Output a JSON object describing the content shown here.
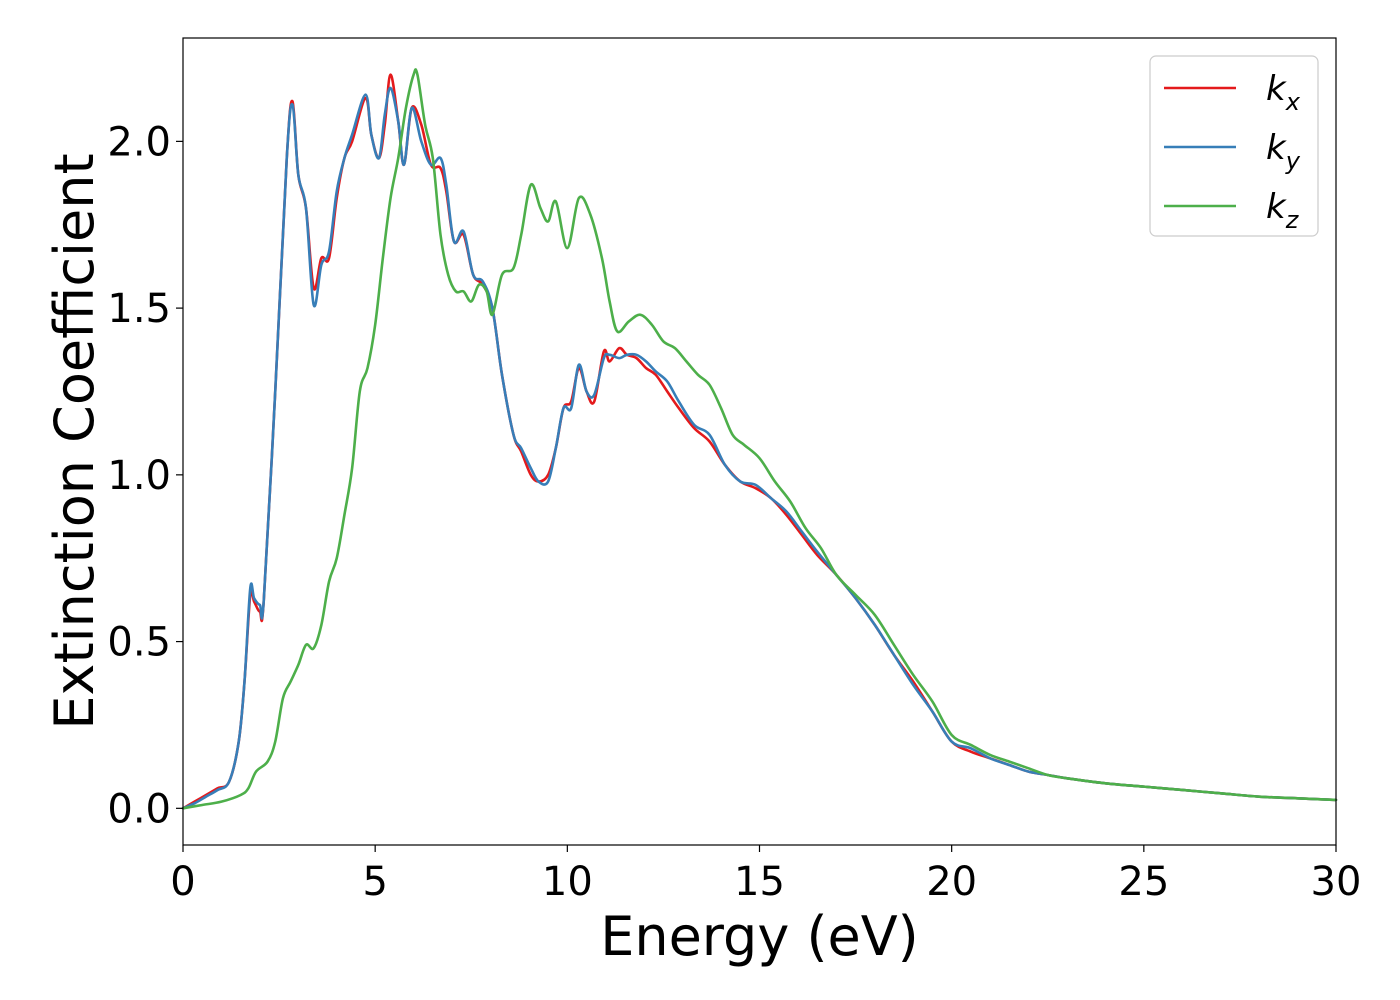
{
  "chart_data": {
    "type": "line",
    "xlabel": "Energy (eV)",
    "ylabel": "Extinction Coefficient",
    "xlim": [
      0,
      30
    ],
    "ylim": [
      -0.11,
      2.31
    ],
    "xticks": [
      0,
      5,
      10,
      15,
      20,
      25,
      30
    ],
    "xtick_labels": [
      "0",
      "5",
      "10",
      "15",
      "20",
      "25",
      "30"
    ],
    "yticks": [
      0.0,
      0.5,
      1.0,
      1.5,
      2.0
    ],
    "ytick_labels": [
      "0.0",
      "0.5",
      "1.0",
      "1.5",
      "2.0"
    ],
    "grid": false,
    "legend_position": "top-right",
    "series": [
      {
        "name": "k",
        "subscript": "x",
        "color": "#e41a1c",
        "x": [
          0,
          0.3,
          0.6,
          0.9,
          1.2,
          1.45,
          1.6,
          1.75,
          1.85,
          2.0,
          2.1,
          2.4,
          2.7,
          2.85,
          3.0,
          3.2,
          3.4,
          3.6,
          3.8,
          4.0,
          4.2,
          4.4,
          4.75,
          4.9,
          5.1,
          5.25,
          5.4,
          5.6,
          5.75,
          5.95,
          6.2,
          6.45,
          6.7,
          6.85,
          7.05,
          7.3,
          7.55,
          7.8,
          8.05,
          8.3,
          8.6,
          8.8,
          9.05,
          9.25,
          9.5,
          9.7,
          9.9,
          10.1,
          10.3,
          10.5,
          10.7,
          10.95,
          11.1,
          11.35,
          11.55,
          11.8,
          12.05,
          12.3,
          12.6,
          12.9,
          13.3,
          13.7,
          14.1,
          14.5,
          14.9,
          15.3,
          15.7,
          16.1,
          16.5,
          17.0,
          17.5,
          18.0,
          18.5,
          19.0,
          19.5,
          20.0,
          20.5,
          21.0,
          21.5,
          22.0,
          22.5,
          23.0,
          24.0,
          25.0,
          26.0,
          27.0,
          28.0,
          29.0,
          30.0
        ],
        "values": [
          0.0,
          0.02,
          0.04,
          0.06,
          0.08,
          0.2,
          0.38,
          0.64,
          0.62,
          0.59,
          0.62,
          1.25,
          1.95,
          2.12,
          1.9,
          1.8,
          1.56,
          1.65,
          1.65,
          1.83,
          1.95,
          2.0,
          2.13,
          2.02,
          1.95,
          2.05,
          2.2,
          2.06,
          1.93,
          2.1,
          2.05,
          1.93,
          1.92,
          1.85,
          1.7,
          1.72,
          1.6,
          1.57,
          1.5,
          1.3,
          1.12,
          1.07,
          1.0,
          0.98,
          1.0,
          1.08,
          1.2,
          1.22,
          1.32,
          1.25,
          1.22,
          1.37,
          1.34,
          1.38,
          1.36,
          1.35,
          1.32,
          1.3,
          1.25,
          1.2,
          1.14,
          1.1,
          1.03,
          0.98,
          0.96,
          0.93,
          0.88,
          0.82,
          0.76,
          0.7,
          0.63,
          0.55,
          0.46,
          0.38,
          0.29,
          0.2,
          0.17,
          0.15,
          0.13,
          0.11,
          0.1,
          0.09,
          0.075,
          0.065,
          0.055,
          0.045,
          0.035,
          0.03,
          0.025
        ]
      },
      {
        "name": "k",
        "subscript": "y",
        "color": "#377eb8",
        "x": [
          0,
          0.3,
          0.6,
          0.9,
          1.2,
          1.45,
          1.6,
          1.75,
          1.85,
          2.0,
          2.1,
          2.4,
          2.7,
          2.85,
          3.0,
          3.2,
          3.4,
          3.6,
          3.8,
          4.0,
          4.2,
          4.4,
          4.75,
          4.9,
          5.1,
          5.25,
          5.4,
          5.6,
          5.75,
          5.95,
          6.2,
          6.45,
          6.7,
          6.85,
          7.05,
          7.3,
          7.55,
          7.8,
          8.05,
          8.3,
          8.6,
          8.8,
          9.05,
          9.25,
          9.5,
          9.7,
          9.9,
          10.1,
          10.3,
          10.5,
          10.7,
          10.95,
          11.1,
          11.35,
          11.55,
          11.8,
          12.05,
          12.3,
          12.6,
          12.9,
          13.3,
          13.7,
          14.1,
          14.5,
          14.9,
          15.3,
          15.7,
          16.1,
          16.5,
          17.0,
          17.5,
          18.0,
          18.5,
          19.0,
          19.5,
          20.0,
          20.5,
          21.0,
          21.5,
          22.0,
          22.5,
          23.0,
          24.0,
          25.0,
          26.0,
          27.0,
          28.0,
          29.0,
          30.0
        ],
        "values": [
          0.0,
          0.015,
          0.035,
          0.055,
          0.08,
          0.2,
          0.38,
          0.66,
          0.63,
          0.61,
          0.62,
          1.25,
          1.95,
          2.11,
          1.9,
          1.8,
          1.51,
          1.63,
          1.67,
          1.85,
          1.95,
          2.02,
          2.14,
          2.02,
          1.95,
          2.08,
          2.16,
          2.06,
          1.93,
          2.1,
          2.0,
          1.93,
          1.95,
          1.87,
          1.7,
          1.73,
          1.6,
          1.58,
          1.5,
          1.3,
          1.12,
          1.08,
          1.02,
          0.98,
          0.98,
          1.08,
          1.2,
          1.2,
          1.33,
          1.25,
          1.24,
          1.35,
          1.36,
          1.35,
          1.36,
          1.36,
          1.34,
          1.31,
          1.28,
          1.22,
          1.15,
          1.12,
          1.03,
          0.98,
          0.97,
          0.93,
          0.89,
          0.83,
          0.77,
          0.7,
          0.63,
          0.55,
          0.46,
          0.37,
          0.29,
          0.2,
          0.18,
          0.15,
          0.13,
          0.11,
          0.1,
          0.09,
          0.075,
          0.065,
          0.055,
          0.045,
          0.035,
          0.03,
          0.025
        ]
      },
      {
        "name": "k",
        "subscript": "z",
        "color": "#4daf4a",
        "x": [
          0,
          0.5,
          1.0,
          1.5,
          1.7,
          1.9,
          2.2,
          2.4,
          2.6,
          2.8,
          3.0,
          3.2,
          3.4,
          3.6,
          3.8,
          4.0,
          4.2,
          4.4,
          4.6,
          4.8,
          5.0,
          5.2,
          5.4,
          5.6,
          5.8,
          6.0,
          6.1,
          6.3,
          6.5,
          6.7,
          6.9,
          7.1,
          7.3,
          7.5,
          7.7,
          7.9,
          8.05,
          8.3,
          8.6,
          8.8,
          9.05,
          9.3,
          9.5,
          9.7,
          10.0,
          10.3,
          10.6,
          10.9,
          11.1,
          11.3,
          11.6,
          11.9,
          12.2,
          12.5,
          12.8,
          13.1,
          13.4,
          13.7,
          14.0,
          14.3,
          14.6,
          15.0,
          15.4,
          15.8,
          16.2,
          16.6,
          17.0,
          17.5,
          18.0,
          18.5,
          19.0,
          19.5,
          20.0,
          20.5,
          21.0,
          21.5,
          22.0,
          22.5,
          23.0,
          24.0,
          25.0,
          26.0,
          27.0,
          28.0,
          29.0,
          30.0
        ],
        "values": [
          0.0,
          0.01,
          0.02,
          0.04,
          0.06,
          0.11,
          0.14,
          0.2,
          0.33,
          0.38,
          0.43,
          0.49,
          0.48,
          0.55,
          0.68,
          0.75,
          0.88,
          1.02,
          1.25,
          1.32,
          1.45,
          1.65,
          1.83,
          1.95,
          2.1,
          2.2,
          2.2,
          2.05,
          1.95,
          1.72,
          1.6,
          1.55,
          1.55,
          1.52,
          1.57,
          1.55,
          1.48,
          1.6,
          1.62,
          1.72,
          1.87,
          1.8,
          1.76,
          1.82,
          1.68,
          1.83,
          1.78,
          1.65,
          1.52,
          1.43,
          1.46,
          1.48,
          1.45,
          1.4,
          1.38,
          1.34,
          1.3,
          1.27,
          1.2,
          1.12,
          1.09,
          1.05,
          0.98,
          0.92,
          0.84,
          0.78,
          0.7,
          0.64,
          0.58,
          0.49,
          0.4,
          0.32,
          0.22,
          0.19,
          0.16,
          0.14,
          0.12,
          0.1,
          0.09,
          0.075,
          0.065,
          0.055,
          0.045,
          0.035,
          0.03,
          0.025
        ]
      }
    ]
  }
}
